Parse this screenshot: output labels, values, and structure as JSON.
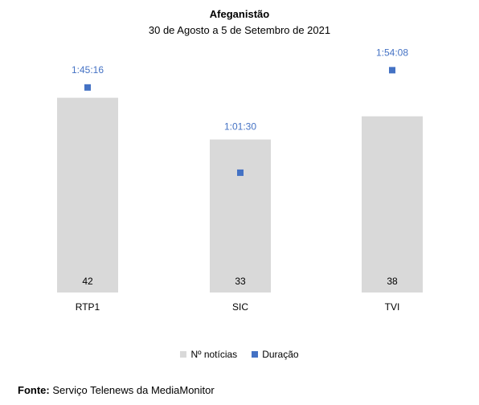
{
  "chart_data": {
    "type": "bar",
    "title": "Afeganistão",
    "subtitle": "30 de Agosto a 5 de Setembro de 2021",
    "categories": [
      "RTP1",
      "SIC",
      "TVI"
    ],
    "series": [
      {
        "name": "Nº notícias",
        "kind": "bar",
        "values": [
          42,
          33,
          38
        ],
        "labels": [
          "42",
          "33",
          "38"
        ],
        "color": "#d9d9d9"
      },
      {
        "name": "Duração",
        "kind": "marker",
        "values_seconds": [
          6316,
          3690,
          6848
        ],
        "labels": [
          "1:45:16",
          "1:01:30",
          "1:54:08"
        ],
        "color": "#4472c4"
      }
    ],
    "legend_position": "bottom",
    "grid": false
  },
  "source": {
    "label": "Fonte",
    "text": "Serviço Telenews da MediaMonitor"
  }
}
